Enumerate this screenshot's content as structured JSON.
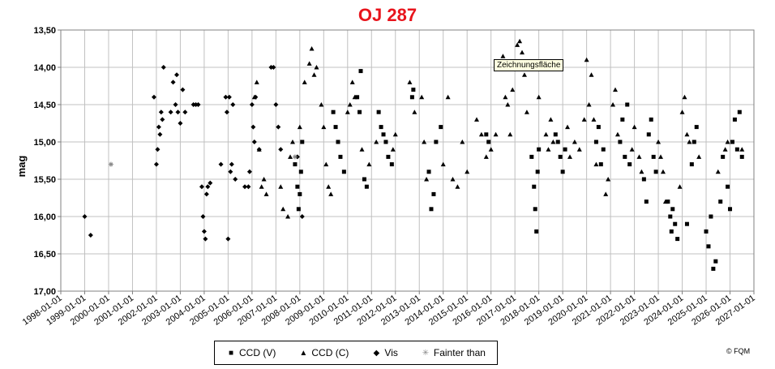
{
  "chart_data": {
    "type": "scatter",
    "title": "OJ 287",
    "xlabel": "",
    "ylabel": "mag",
    "y_inverted": true,
    "ylim": [
      13.5,
      17.0
    ],
    "yticks": [
      "13,50",
      "14,00",
      "14,50",
      "15,00",
      "15,50",
      "16,00",
      "16,50",
      "17,00"
    ],
    "xticks": [
      "1998-01-01",
      "1999-01-01",
      "2000-01-01",
      "2001-01-01",
      "2002-01-01",
      "2003-01-01",
      "2004-01-01",
      "2005-01-01",
      "2006-01-01",
      "2007-01-01",
      "2008-01-01",
      "2009-01-01",
      "2010-01-01",
      "2011-01-01",
      "2012-01-01",
      "2013-01-01",
      "2014-01-01",
      "2015-01-01",
      "2016-01-01",
      "2017-01-01",
      "2018-01-01",
      "2019-01-01",
      "2020-01-01",
      "2021-01-01",
      "2022-01-01",
      "2023-01-01",
      "2024-01-01",
      "2025-01-01",
      "2026-01-01",
      "2027-01-01"
    ],
    "grid": true,
    "legend_position": "bottom",
    "series": [
      {
        "name": "CCD (V)",
        "marker": "square",
        "points": [
          [
            2007.8,
            15.3
          ],
          [
            2007.9,
            15.6
          ],
          [
            2007.95,
            15.9
          ],
          [
            2008.0,
            15.7
          ],
          [
            2008.05,
            15.4
          ],
          [
            2008.1,
            15.0
          ],
          [
            2009.4,
            14.6
          ],
          [
            2009.5,
            14.8
          ],
          [
            2009.6,
            15.0
          ],
          [
            2009.7,
            15.2
          ],
          [
            2009.85,
            15.4
          ],
          [
            2010.4,
            14.4
          ],
          [
            2010.5,
            14.6
          ],
          [
            2010.55,
            14.05
          ],
          [
            2010.7,
            15.5
          ],
          [
            2010.8,
            15.6
          ],
          [
            2011.3,
            14.6
          ],
          [
            2011.4,
            14.8
          ],
          [
            2011.5,
            14.9
          ],
          [
            2011.6,
            15.0
          ],
          [
            2011.7,
            15.2
          ],
          [
            2011.85,
            15.3
          ],
          [
            2012.7,
            14.4
          ],
          [
            2012.75,
            14.3
          ],
          [
            2013.4,
            15.4
          ],
          [
            2013.5,
            15.9
          ],
          [
            2013.6,
            15.7
          ],
          [
            2013.7,
            15.0
          ],
          [
            2013.9,
            14.8
          ],
          [
            2015.8,
            14.9
          ],
          [
            2015.9,
            15.0
          ],
          [
            2017.7,
            15.2
          ],
          [
            2017.8,
            15.6
          ],
          [
            2017.85,
            15.9
          ],
          [
            2017.9,
            16.2
          ],
          [
            2017.95,
            15.4
          ],
          [
            2018.0,
            15.1
          ],
          [
            2018.7,
            14.9
          ],
          [
            2018.8,
            15.0
          ],
          [
            2018.9,
            15.2
          ],
          [
            2019.0,
            15.4
          ],
          [
            2019.1,
            15.1
          ],
          [
            2020.4,
            15.0
          ],
          [
            2020.5,
            14.8
          ],
          [
            2020.6,
            15.3
          ],
          [
            2020.7,
            15.1
          ],
          [
            2021.4,
            15.0
          ],
          [
            2021.5,
            14.7
          ],
          [
            2021.6,
            15.2
          ],
          [
            2021.7,
            14.5
          ],
          [
            2021.8,
            15.3
          ],
          [
            2022.4,
            15.5
          ],
          [
            2022.5,
            15.8
          ],
          [
            2022.6,
            14.9
          ],
          [
            2022.7,
            14.7
          ],
          [
            2022.8,
            15.2
          ],
          [
            2022.9,
            15.4
          ],
          [
            2023.4,
            15.8
          ],
          [
            2023.5,
            16.0
          ],
          [
            2023.55,
            16.2
          ],
          [
            2023.6,
            15.9
          ],
          [
            2023.7,
            16.1
          ],
          [
            2023.8,
            16.3
          ],
          [
            2024.2,
            16.1
          ],
          [
            2024.4,
            15.3
          ],
          [
            2024.5,
            15.0
          ],
          [
            2024.6,
            14.8
          ],
          [
            2025.0,
            16.2
          ],
          [
            2025.1,
            16.4
          ],
          [
            2025.2,
            16.0
          ],
          [
            2025.3,
            16.7
          ],
          [
            2025.4,
            16.6
          ],
          [
            2025.6,
            15.8
          ],
          [
            2025.7,
            15.2
          ],
          [
            2025.9,
            15.6
          ],
          [
            2026.0,
            15.9
          ],
          [
            2026.1,
            15.0
          ],
          [
            2026.2,
            14.7
          ],
          [
            2026.3,
            15.1
          ],
          [
            2026.4,
            14.6
          ],
          [
            2026.5,
            15.2
          ]
        ]
      },
      {
        "name": "CCD (C)",
        "marker": "triangle",
        "points": [
          [
            2006.1,
            14.4
          ],
          [
            2006.2,
            14.2
          ],
          [
            2006.3,
            15.1
          ],
          [
            2006.4,
            15.6
          ],
          [
            2006.5,
            15.5
          ],
          [
            2006.6,
            15.7
          ],
          [
            2007.2,
            15.6
          ],
          [
            2007.3,
            15.9
          ],
          [
            2007.5,
            16.0
          ],
          [
            2007.6,
            15.2
          ],
          [
            2007.7,
            15.0
          ],
          [
            2008.0,
            14.8
          ],
          [
            2008.2,
            14.2
          ],
          [
            2008.4,
            13.95
          ],
          [
            2008.5,
            13.75
          ],
          [
            2008.6,
            14.1
          ],
          [
            2008.7,
            14.0
          ],
          [
            2008.9,
            14.5
          ],
          [
            2009.0,
            14.8
          ],
          [
            2009.1,
            15.3
          ],
          [
            2009.2,
            15.6
          ],
          [
            2009.3,
            15.7
          ],
          [
            2010.0,
            14.6
          ],
          [
            2010.1,
            14.5
          ],
          [
            2010.2,
            14.2
          ],
          [
            2010.3,
            14.4
          ],
          [
            2010.6,
            15.1
          ],
          [
            2010.9,
            15.3
          ],
          [
            2011.2,
            15.0
          ],
          [
            2011.9,
            15.1
          ],
          [
            2012.0,
            14.9
          ],
          [
            2012.6,
            14.2
          ],
          [
            2012.8,
            14.6
          ],
          [
            2013.1,
            14.4
          ],
          [
            2013.2,
            15.0
          ],
          [
            2013.3,
            15.5
          ],
          [
            2014.0,
            15.3
          ],
          [
            2014.2,
            14.4
          ],
          [
            2014.4,
            15.5
          ],
          [
            2014.6,
            15.6
          ],
          [
            2014.8,
            15.0
          ],
          [
            2015.0,
            15.4
          ],
          [
            2015.4,
            14.7
          ],
          [
            2015.6,
            14.9
          ],
          [
            2015.8,
            15.2
          ],
          [
            2016.0,
            15.1
          ],
          [
            2016.2,
            14.9
          ],
          [
            2016.5,
            13.85
          ],
          [
            2016.6,
            14.4
          ],
          [
            2016.7,
            14.5
          ],
          [
            2016.8,
            14.9
          ],
          [
            2016.9,
            14.3
          ],
          [
            2017.0,
            14.0
          ],
          [
            2017.1,
            13.7
          ],
          [
            2017.2,
            13.65
          ],
          [
            2017.3,
            13.8
          ],
          [
            2017.4,
            14.1
          ],
          [
            2017.5,
            14.6
          ],
          [
            2018.0,
            14.4
          ],
          [
            2018.3,
            14.9
          ],
          [
            2018.4,
            15.1
          ],
          [
            2018.5,
            14.7
          ],
          [
            2018.6,
            15.0
          ],
          [
            2019.2,
            14.8
          ],
          [
            2019.3,
            15.2
          ],
          [
            2019.5,
            15.0
          ],
          [
            2019.7,
            15.1
          ],
          [
            2019.9,
            14.7
          ],
          [
            2020.0,
            13.9
          ],
          [
            2020.1,
            14.5
          ],
          [
            2020.2,
            14.1
          ],
          [
            2020.3,
            14.7
          ],
          [
            2020.4,
            15.3
          ],
          [
            2020.8,
            15.7
          ],
          [
            2020.9,
            15.5
          ],
          [
            2021.1,
            14.5
          ],
          [
            2021.2,
            14.3
          ],
          [
            2021.3,
            14.9
          ],
          [
            2021.9,
            15.1
          ],
          [
            2022.0,
            14.8
          ],
          [
            2022.2,
            15.2
          ],
          [
            2022.3,
            15.4
          ],
          [
            2023.0,
            15.0
          ],
          [
            2023.1,
            15.2
          ],
          [
            2023.2,
            15.4
          ],
          [
            2023.3,
            15.8
          ],
          [
            2023.9,
            15.6
          ],
          [
            2024.0,
            14.6
          ],
          [
            2024.1,
            14.4
          ],
          [
            2024.2,
            14.9
          ],
          [
            2024.3,
            15.0
          ],
          [
            2024.7,
            15.2
          ],
          [
            2025.5,
            15.4
          ],
          [
            2025.8,
            15.1
          ],
          [
            2025.9,
            15.0
          ],
          [
            2026.5,
            15.1
          ]
        ]
      },
      {
        "name": "Vis",
        "marker": "diamond",
        "points": [
          [
            1999.0,
            16.0
          ],
          [
            1999.25,
            16.25
          ],
          [
            2001.9,
            14.4
          ],
          [
            2002.0,
            15.3
          ],
          [
            2002.05,
            15.1
          ],
          [
            2002.1,
            14.8
          ],
          [
            2002.15,
            14.9
          ],
          [
            2002.2,
            14.6
          ],
          [
            2002.25,
            14.7
          ],
          [
            2002.3,
            14.0
          ],
          [
            2002.6,
            14.6
          ],
          [
            2002.7,
            14.2
          ],
          [
            2002.8,
            14.5
          ],
          [
            2002.85,
            14.1
          ],
          [
            2002.9,
            14.6
          ],
          [
            2003.0,
            14.75
          ],
          [
            2003.1,
            14.3
          ],
          [
            2003.2,
            14.6
          ],
          [
            2003.55,
            14.5
          ],
          [
            2003.65,
            14.5
          ],
          [
            2003.75,
            14.5
          ],
          [
            2003.9,
            15.6
          ],
          [
            2003.95,
            16.0
          ],
          [
            2004.0,
            16.2
          ],
          [
            2004.05,
            16.3
          ],
          [
            2004.1,
            15.7
          ],
          [
            2004.15,
            15.6
          ],
          [
            2004.25,
            15.55
          ],
          [
            2004.7,
            15.3
          ],
          [
            2004.9,
            14.4
          ],
          [
            2004.95,
            14.6
          ],
          [
            2005.0,
            16.3
          ],
          [
            2005.05,
            14.4
          ],
          [
            2005.1,
            15.4
          ],
          [
            2005.15,
            15.3
          ],
          [
            2005.2,
            14.5
          ],
          [
            2005.3,
            15.5
          ],
          [
            2005.7,
            15.6
          ],
          [
            2005.85,
            15.6
          ],
          [
            2005.9,
            15.4
          ],
          [
            2006.0,
            14.5
          ],
          [
            2006.05,
            14.8
          ],
          [
            2006.1,
            15.0
          ],
          [
            2006.15,
            14.4
          ],
          [
            2006.3,
            15.1
          ],
          [
            2006.8,
            14.0
          ],
          [
            2006.9,
            14.0
          ],
          [
            2007.0,
            14.5
          ],
          [
            2007.1,
            14.8
          ],
          [
            2007.2,
            15.1
          ],
          [
            2007.9,
            15.2
          ],
          [
            2008.1,
            16.0
          ]
        ]
      },
      {
        "name": "Fainter than",
        "marker": "asterisk",
        "points": [
          [
            2000.1,
            15.3
          ],
          [
            2007.8,
            15.2
          ]
        ]
      }
    ]
  },
  "tooltip": "Zeichnungsfläche",
  "copyright": "© FQM"
}
